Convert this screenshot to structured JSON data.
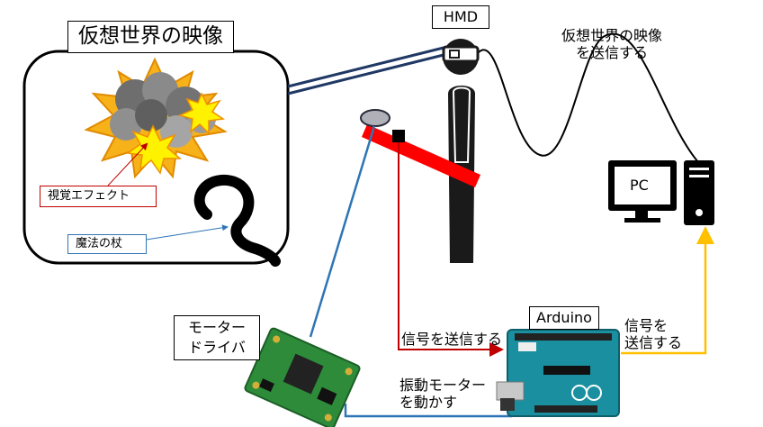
{
  "labels": {
    "vr_image_title": "仮想世界の映像",
    "hmd": "HMD",
    "pc": "PC",
    "arduino": "Arduino",
    "visual_effect": "視覚エフェクト",
    "magic_staff": "魔法の杖",
    "send_vr_line1": "仮想世界の映像",
    "send_vr_line2": "を送信する",
    "motor_driver_line1": "モーター",
    "motor_driver_line2": "ドライバ",
    "send_signal_arduino": "信号を送信する",
    "send_signal_pc_line1": "信号を",
    "send_signal_pc_line2": "送信する",
    "vib_line1": "振動モーター",
    "vib_line2": "を動かす"
  },
  "colors": {
    "red_line": "#c00000",
    "blue_line": "#2e75b6",
    "yellow_line": "#ffc000",
    "navy_line": "#1f3864",
    "board_green": "#2e8b3a",
    "arduino_teal": "#1a8fa0",
    "person": "#1a1a1a",
    "staff_red": "#ff0000"
  }
}
